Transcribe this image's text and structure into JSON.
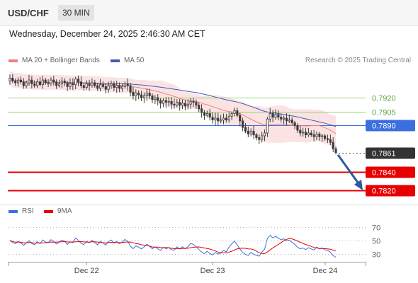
{
  "header": {
    "pair": "USD/CHF",
    "timeframe": "30 MIN"
  },
  "datetime": "Wednesday, December 24, 2025 2:46:30 AM CET",
  "legend": {
    "ma20_label": "MA 20 + Bollinger Bands",
    "ma50_label": "MA 50",
    "rsi_label": "RSI",
    "rsi_ma_label": "9MA",
    "credit": "Research © 2025 Trading Central"
  },
  "colors": {
    "candle": "#3a3a3a",
    "ma20": "#f08080",
    "bollinger_fill": "#fbdada",
    "ma50": "#3c5db8",
    "green_level": "#9ad17f",
    "pivot": "#3b6fe0",
    "red_level": "#e60000",
    "arrow": "#2c5aa0",
    "rsi": "#3b6fe0",
    "rsi_ma": "#e60000"
  },
  "chart_data": [
    {
      "type": "candlestick",
      "x_tick_labels": [
        "Dec 22",
        "Dec 23",
        "Dec 24"
      ],
      "ylim": [
        0.7812,
        0.7952
      ],
      "levels": [
        {
          "value": 0.792,
          "label": "0.7920",
          "kind": "resistance"
        },
        {
          "value": 0.7905,
          "label": "0.7905",
          "kind": "resistance"
        },
        {
          "value": 0.789,
          "label": "0.7890",
          "kind": "pivot"
        },
        {
          "value": 0.7861,
          "label": "0.7861",
          "kind": "last_price"
        },
        {
          "value": 0.784,
          "label": "0.7840",
          "kind": "target"
        },
        {
          "value": 0.782,
          "label": "0.7820",
          "kind": "target"
        }
      ],
      "forecast_arrow": {
        "from": 0.786,
        "to": 0.7822
      },
      "close": [
        0.7941,
        0.7938,
        0.7936,
        0.7939,
        0.7937,
        0.7933,
        0.7936,
        0.7939,
        0.7935,
        0.7933,
        0.7937,
        0.7934,
        0.7939,
        0.7936,
        0.7935,
        0.7939,
        0.7937,
        0.7933,
        0.7935,
        0.7938,
        0.7936,
        0.7932,
        0.7935,
        0.7934,
        0.794,
        0.7937,
        0.7933,
        0.7931,
        0.7935,
        0.7933,
        0.7936,
        0.7933,
        0.793,
        0.7934,
        0.7932,
        0.7929,
        0.7933,
        0.7935,
        0.7931,
        0.7933,
        0.793,
        0.7932,
        0.7935,
        0.7933,
        0.7926,
        0.7922,
        0.7925,
        0.7923,
        0.792,
        0.7922,
        0.7925,
        0.7922,
        0.7918,
        0.792,
        0.7917,
        0.7914,
        0.7917,
        0.7915,
        0.7916,
        0.7913,
        0.7912,
        0.7915,
        0.7912,
        0.7914,
        0.7911,
        0.7913,
        0.7916,
        0.7915,
        0.7912,
        0.7908,
        0.7904,
        0.7901,
        0.7903,
        0.7899,
        0.7896,
        0.7898,
        0.7895,
        0.7896,
        0.7898,
        0.7896,
        0.79,
        0.7903,
        0.7906,
        0.7901,
        0.7895,
        0.7888,
        0.7884,
        0.7881,
        0.7884,
        0.788,
        0.7877,
        0.7875,
        0.7879,
        0.7882,
        0.7897,
        0.7903,
        0.7899,
        0.7902,
        0.7899,
        0.7897,
        0.7898,
        0.7895,
        0.7896,
        0.7893,
        0.789,
        0.7885,
        0.7882,
        0.7883,
        0.788,
        0.7882,
        0.788,
        0.7878,
        0.7881,
        0.7878,
        0.7879,
        0.7876,
        0.7875,
        0.7872,
        0.7865,
        0.7861
      ]
    },
    {
      "type": "line",
      "title": "RSI",
      "y_ticks": [
        30,
        50,
        70
      ],
      "ylim": [
        22,
        80
      ]
    }
  ]
}
